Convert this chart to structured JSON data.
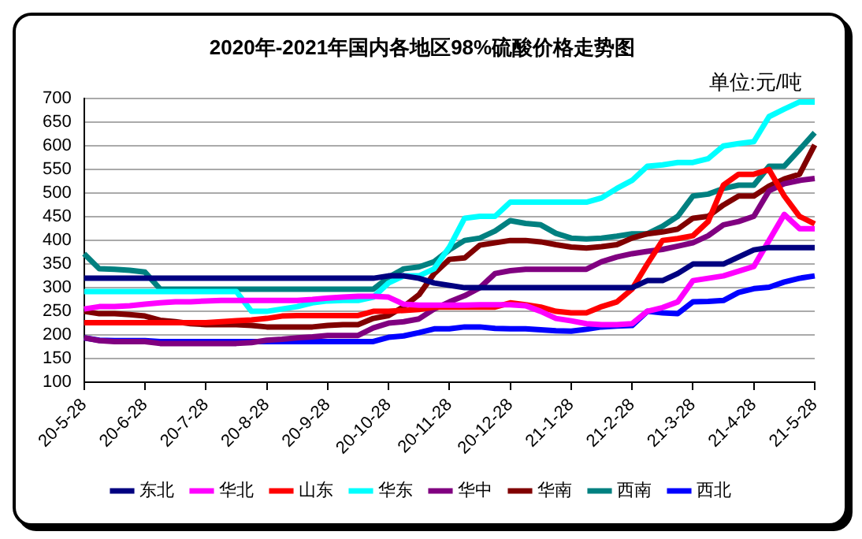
{
  "chart_data": {
    "type": "line",
    "title": "2020年-2021年国内各地区98%硫酸价格走势图",
    "annotations": [
      "单位:元/吨"
    ],
    "categories": [
      "20-5-28",
      null,
      null,
      null,
      "20-6-28",
      null,
      null,
      null,
      "20-7-28",
      null,
      null,
      null,
      "20-8-28",
      null,
      null,
      null,
      "20-9-28",
      null,
      null,
      null,
      "20-10-28",
      null,
      null,
      null,
      "20-11-28",
      null,
      null,
      null,
      "20-12-28",
      null,
      null,
      null,
      "21-1-28",
      null,
      null,
      null,
      "21-2-28",
      null,
      null,
      null,
      "21-3-28",
      null,
      null,
      null,
      "21-4-28",
      null,
      null,
      null,
      "21-5-28"
    ],
    "series": [
      {
        "name": "东北",
        "color": "#000080",
        "values": [
          320,
          320,
          320,
          320,
          320,
          320,
          320,
          320,
          320,
          320,
          320,
          320,
          320,
          320,
          320,
          320,
          320,
          320,
          320,
          320,
          325,
          325,
          320,
          310,
          305,
          300,
          300,
          300,
          300,
          300,
          300,
          300,
          300,
          300,
          300,
          300,
          300,
          315,
          315,
          330,
          350,
          350,
          350,
          365,
          380,
          385,
          385,
          385,
          385
        ]
      },
      {
        "name": "华北",
        "color": "#ff00ff",
        "values": [
          255,
          260,
          260,
          262,
          265,
          268,
          270,
          270,
          272,
          273,
          273,
          273,
          273,
          273,
          273,
          275,
          278,
          280,
          282,
          282,
          280,
          265,
          263,
          263,
          263,
          263,
          264,
          264,
          264,
          262,
          250,
          235,
          230,
          224,
          222,
          222,
          224,
          250,
          258,
          270,
          315,
          320,
          325,
          335,
          345,
          400,
          455,
          425,
          425
        ]
      },
      {
        "name": "山东",
        "color": "#ff0000",
        "values": [
          226,
          226,
          226,
          226,
          226,
          226,
          226,
          226,
          226,
          228,
          230,
          232,
          235,
          240,
          241,
          241,
          241,
          241,
          241,
          250,
          250,
          252,
          254,
          259,
          259,
          259,
          259,
          259,
          268,
          264,
          259,
          250,
          247,
          247,
          260,
          270,
          297,
          350,
          400,
          404,
          410,
          440,
          517,
          540,
          540,
          550,
          494,
          451,
          435
        ]
      },
      {
        "name": "华东",
        "color": "#00ffff",
        "values": [
          292,
          292,
          292,
          292,
          292,
          292,
          292,
          292,
          292,
          292,
          292,
          250,
          250,
          255,
          260,
          268,
          272,
          273,
          273,
          280,
          310,
          325,
          325,
          340,
          386,
          447,
          451,
          451,
          481,
          481,
          481,
          481,
          481,
          481,
          490,
          510,
          527,
          557,
          560,
          565,
          565,
          573,
          600,
          605,
          609,
          662,
          678,
          693,
          693
        ]
      },
      {
        "name": "华中",
        "color": "#800080",
        "values": [
          194,
          188,
          186,
          186,
          186,
          182,
          182,
          182,
          182,
          182,
          182,
          184,
          189,
          191,
          194,
          196,
          199,
          199,
          199,
          215,
          225,
          228,
          234,
          255,
          270,
          283,
          300,
          330,
          336,
          339,
          339,
          339,
          339,
          339,
          355,
          365,
          372,
          377,
          381,
          388,
          395,
          410,
          433,
          440,
          451,
          505,
          520,
          527,
          531
        ]
      },
      {
        "name": "华南",
        "color": "#800000",
        "values": [
          250,
          245,
          245,
          243,
          240,
          231,
          228,
          224,
          222,
          222,
          222,
          220,
          217,
          217,
          217,
          217,
          220,
          222,
          222,
          235,
          241,
          260,
          285,
          330,
          360,
          363,
          390,
          395,
          400,
          400,
          397,
          391,
          386,
          384,
          387,
          391,
          405,
          414,
          418,
          424,
          447,
          451,
          475,
          494,
          494,
          515,
          530,
          540,
          602
        ]
      },
      {
        "name": "西南",
        "color": "#008080",
        "values": [
          372,
          340,
          339,
          337,
          333,
          297,
          297,
          297,
          297,
          297,
          297,
          297,
          297,
          297,
          297,
          297,
          297,
          297,
          297,
          297,
          322,
          340,
          344,
          355,
          380,
          400,
          405,
          420,
          442,
          436,
          433,
          415,
          405,
          403,
          405,
          409,
          414,
          414,
          430,
          451,
          494,
          498,
          510,
          517,
          517,
          557,
          557,
          592,
          628
        ]
      },
      {
        "name": "西北",
        "color": "#0000ff",
        "values": [
          194,
          189,
          188,
          188,
          188,
          186,
          186,
          186,
          186,
          186,
          186,
          186,
          186,
          186,
          186,
          186,
          186,
          186,
          186,
          186,
          195,
          198,
          205,
          213,
          213,
          217,
          217,
          214,
          213,
          213,
          211,
          209,
          208,
          212,
          217,
          219,
          220,
          250,
          247,
          245,
          270,
          271,
          273,
          290,
          298,
          301,
          312,
          320,
          325
        ]
      }
    ],
    "ylim": [
      100,
      700
    ],
    "yticks": [
      100,
      150,
      200,
      250,
      300,
      350,
      400,
      450,
      500,
      550,
      600,
      650,
      700
    ],
    "grid": "y",
    "legend": "bottom",
    "marker": "none",
    "line_style": "solid"
  }
}
